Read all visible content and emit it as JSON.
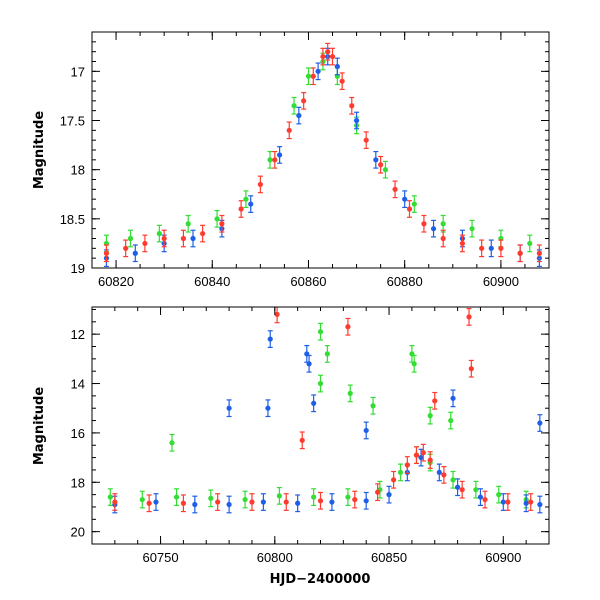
{
  "chart_data": [
    {
      "type": "scatter",
      "title": "",
      "xlabel": "",
      "ylabel": "Magnitude",
      "xlim": [
        60815,
        60910
      ],
      "ylim": [
        19.0,
        16.6
      ],
      "y_inverted": true,
      "xticks": [
        60820,
        60840,
        60860,
        60880,
        60900
      ],
      "yticks": [
        17,
        17.5,
        18,
        18.5,
        19
      ],
      "grid": false,
      "legend": "none",
      "error_bars": true,
      "series": [
        {
          "color": "#ff3b2f",
          "x": [
            60818,
            60822,
            60826,
            60830,
            60834,
            60838,
            60842,
            60846,
            60850,
            60853,
            60856,
            60859,
            60861,
            60863,
            60864,
            60865,
            60867,
            60869,
            60872,
            60875,
            60878,
            60881,
            60884,
            60888,
            60892,
            60896,
            60900,
            60904,
            60908
          ],
          "y": [
            18.85,
            18.8,
            18.75,
            18.7,
            18.7,
            18.65,
            18.55,
            18.4,
            18.15,
            17.9,
            17.6,
            17.3,
            17.05,
            16.85,
            16.8,
            16.85,
            17.1,
            17.35,
            17.7,
            17.95,
            18.2,
            18.4,
            18.55,
            18.7,
            18.75,
            18.8,
            18.8,
            18.85,
            18.85
          ]
        },
        {
          "color": "#1f5fe8",
          "x": [
            60818,
            60824,
            60830,
            60836,
            60842,
            60848,
            60854,
            60858,
            60862,
            60864,
            60866,
            60870,
            60874,
            60880,
            60886,
            60892,
            60898,
            60904,
            60908
          ],
          "y": [
            18.9,
            18.85,
            18.75,
            18.7,
            18.6,
            18.35,
            17.85,
            17.45,
            17.0,
            16.85,
            16.95,
            17.5,
            17.9,
            18.3,
            18.6,
            18.7,
            18.8,
            18.85,
            18.9
          ]
        },
        {
          "color": "#33dd33",
          "x": [
            60818,
            60823,
            60829,
            60835,
            60841,
            60847,
            60852,
            60857,
            60860,
            60863,
            60866,
            60870,
            60876,
            60882,
            60888,
            60894,
            60900,
            60906
          ],
          "y": [
            18.75,
            18.7,
            18.65,
            18.55,
            18.5,
            18.3,
            17.9,
            17.35,
            17.05,
            16.9,
            17.05,
            17.55,
            18.0,
            18.35,
            18.55,
            18.6,
            18.7,
            18.75
          ]
        }
      ]
    },
    {
      "type": "scatter",
      "title": "",
      "xlabel": "HJD−2400000",
      "ylabel": "Magnitude",
      "xlim": [
        60720,
        60920
      ],
      "ylim": [
        20.5,
        10.9
      ],
      "y_inverted": true,
      "xticks": [
        60750,
        60800,
        60850,
        60900
      ],
      "yticks": [
        12,
        14,
        16,
        18,
        20
      ],
      "grid": false,
      "legend": "none",
      "error_bars": true,
      "series": [
        {
          "color": "#ff3b2f",
          "x": [
            60730,
            60745,
            60760,
            60775,
            60790,
            60805,
            60820,
            60835,
            60845,
            60852,
            60858,
            60862,
            60865,
            60868,
            60874,
            60882,
            60892,
            60902,
            60912,
            60801,
            60812,
            60832,
            60870,
            60885,
            60886
          ],
          "y": [
            18.8,
            18.85,
            18.85,
            18.8,
            18.8,
            18.8,
            18.75,
            18.7,
            18.4,
            17.9,
            17.3,
            16.9,
            16.8,
            17.1,
            17.7,
            18.3,
            18.7,
            18.8,
            18.8,
            11.2,
            16.3,
            11.7,
            14.7,
            11.3,
            13.4
          ]
        },
        {
          "color": "#1f5fe8",
          "x": [
            60730,
            60748,
            60765,
            60780,
            60795,
            60810,
            60825,
            60840,
            60850,
            60858,
            60864,
            60872,
            60880,
            60890,
            60900,
            60910,
            60916,
            60798,
            60814,
            60815,
            60817,
            60780,
            60797,
            60840,
            60878,
            60916
          ],
          "y": [
            18.9,
            18.8,
            18.9,
            18.9,
            18.8,
            18.85,
            18.8,
            18.75,
            18.5,
            17.6,
            17.0,
            17.6,
            18.2,
            18.6,
            18.8,
            18.85,
            18.9,
            12.2,
            12.8,
            13.2,
            14.8,
            15.0,
            15.0,
            15.9,
            14.6,
            15.6
          ]
        },
        {
          "color": "#33dd33",
          "x": [
            60728,
            60742,
            60757,
            60772,
            60787,
            60802,
            60817,
            60832,
            60846,
            60855,
            60862,
            60868,
            60878,
            60888,
            60898,
            60910,
            60820,
            60823,
            60860,
            60861,
            60820,
            60833,
            60843,
            60868,
            60877,
            60755
          ],
          "y": [
            18.6,
            18.7,
            18.6,
            18.65,
            18.7,
            18.55,
            18.6,
            18.6,
            18.3,
            17.6,
            16.9,
            17.2,
            17.9,
            18.3,
            18.5,
            18.7,
            11.9,
            12.8,
            12.8,
            13.2,
            14.0,
            14.4,
            14.9,
            15.3,
            15.5,
            16.4
          ]
        }
      ]
    }
  ],
  "top_panel": {
    "ylabel": "Magnitude",
    "x_ticks": [
      "60820",
      "60840",
      "60860",
      "60880",
      "60900"
    ],
    "y_ticks": [
      "17",
      "17.5",
      "18",
      "18.5",
      "19"
    ]
  },
  "bottom_panel": {
    "ylabel": "Magnitude",
    "xlabel": "HJD−2400000",
    "x_ticks": [
      "60750",
      "60800",
      "60850",
      "60900"
    ],
    "y_ticks": [
      "12",
      "14",
      "16",
      "18",
      "20"
    ]
  }
}
